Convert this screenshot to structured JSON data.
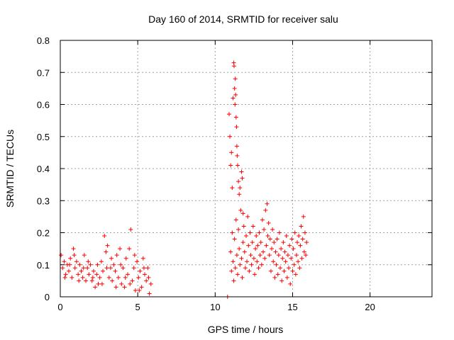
{
  "chart_data": {
    "type": "scatter",
    "title": "Day 160 of 2014, SRMTID for receiver salu",
    "xlabel": "GPS time / hours",
    "ylabel": "SRMTID / TECUs",
    "xlim": [
      0,
      24
    ],
    "ylim": [
      0,
      0.8
    ],
    "xticks": [
      0,
      5,
      10,
      15,
      20
    ],
    "yticks": [
      0,
      0.1,
      0.2,
      0.3,
      0.4,
      0.5,
      0.6,
      0.7,
      0.8
    ],
    "xtick_labels": [
      "0",
      "5",
      "10",
      "15",
      "20"
    ],
    "ytick_labels": [
      "0",
      "0.1",
      "0.2",
      "0.3",
      "0.4",
      "0.5",
      "0.6",
      "0.7",
      "0.8"
    ],
    "grid": true,
    "marker": "+",
    "color": "#ff0000",
    "series": [
      {
        "name": "SRMTID",
        "points": [
          [
            0.05,
            0.13
          ],
          [
            0.15,
            0.09
          ],
          [
            0.25,
            0.11
          ],
          [
            0.35,
            0.07
          ],
          [
            0.45,
            0.1
          ],
          [
            0.55,
            0.08
          ],
          [
            0.65,
            0.12
          ],
          [
            0.75,
            0.06
          ],
          [
            0.85,
            0.15
          ],
          [
            0.95,
            0.09
          ],
          [
            1.05,
            0.11
          ],
          [
            1.15,
            0.07
          ],
          [
            1.25,
            0.1
          ],
          [
            1.35,
            0.08
          ],
          [
            1.45,
            0.06
          ],
          [
            1.55,
            0.13
          ],
          [
            1.65,
            0.05
          ],
          [
            1.75,
            0.09
          ],
          [
            1.85,
            0.07
          ],
          [
            1.95,
            0.1
          ],
          [
            2.05,
            0.05
          ],
          [
            2.15,
            0.08
          ],
          [
            2.25,
            0.03
          ],
          [
            2.35,
            0.07
          ],
          [
            2.45,
            0.04
          ],
          [
            2.55,
            0.06
          ],
          [
            2.65,
            0.11
          ],
          [
            2.75,
            0.08
          ],
          [
            2.85,
            0.19
          ],
          [
            2.95,
            0.14
          ],
          [
            3.05,
            0.16
          ],
          [
            3.15,
            0.06
          ],
          [
            3.25,
            0.09
          ],
          [
            3.35,
            0.05
          ],
          [
            3.45,
            0.1
          ],
          [
            3.55,
            0.08
          ],
          [
            3.65,
            0.13
          ],
          [
            3.75,
            0.06
          ],
          [
            3.85,
            0.15
          ],
          [
            3.95,
            0.04
          ],
          [
            4.05,
            0.09
          ],
          [
            4.15,
            0.03
          ],
          [
            4.25,
            0.12
          ],
          [
            4.35,
            0.07
          ],
          [
            4.45,
            0.15
          ],
          [
            4.55,
            0.21
          ],
          [
            4.65,
            0.05
          ],
          [
            4.75,
            0.09
          ],
          [
            4.85,
            0.02
          ],
          [
            4.95,
            0.11
          ],
          [
            5.05,
            0.06
          ],
          [
            5.15,
            0.08
          ],
          [
            5.25,
            0.03
          ],
          [
            5.35,
            0.12
          ],
          [
            5.45,
            0.07
          ],
          [
            5.55,
            0.05
          ],
          [
            5.65,
            0.09
          ],
          [
            5.75,
            0.01
          ],
          [
            5.85,
            0.04
          ],
          [
            0.3,
            0.06
          ],
          [
            0.6,
            0.1
          ],
          [
            0.9,
            0.13
          ],
          [
            1.2,
            0.05
          ],
          [
            1.5,
            0.09
          ],
          [
            1.8,
            0.11
          ],
          [
            2.1,
            0.06
          ],
          [
            2.4,
            0.1
          ],
          [
            2.7,
            0.04
          ],
          [
            3.0,
            0.09
          ],
          [
            3.3,
            0.12
          ],
          [
            3.6,
            0.03
          ],
          [
            3.9,
            0.1
          ],
          [
            4.2,
            0.06
          ],
          [
            4.5,
            0.04
          ],
          [
            4.8,
            0.13
          ],
          [
            5.1,
            0.02
          ],
          [
            5.4,
            0.09
          ],
          [
            5.7,
            0.06
          ],
          [
            10.8,
            0.0
          ],
          [
            10.9,
            0.57
          ],
          [
            10.95,
            0.5
          ],
          [
            11.0,
            0.41
          ],
          [
            11.05,
            0.45
          ],
          [
            11.1,
            0.34
          ],
          [
            11.15,
            0.62
          ],
          [
            11.2,
            0.73
          ],
          [
            11.22,
            0.72
          ],
          [
            11.25,
            0.65
          ],
          [
            11.28,
            0.6
          ],
          [
            11.3,
            0.68
          ],
          [
            11.32,
            0.63
          ],
          [
            11.35,
            0.56
          ],
          [
            11.38,
            0.53
          ],
          [
            11.4,
            0.47
          ],
          [
            11.42,
            0.44
          ],
          [
            11.45,
            0.41
          ],
          [
            11.5,
            0.36
          ],
          [
            11.55,
            0.32
          ],
          [
            11.6,
            0.34
          ],
          [
            11.7,
            0.39
          ],
          [
            11.75,
            0.37
          ],
          [
            11.8,
            0.26
          ],
          [
            11.0,
            0.14
          ],
          [
            11.05,
            0.08
          ],
          [
            11.1,
            0.2
          ],
          [
            11.15,
            0.11
          ],
          [
            11.2,
            0.05
          ],
          [
            11.25,
            0.18
          ],
          [
            11.3,
            0.09
          ],
          [
            11.35,
            0.24
          ],
          [
            11.4,
            0.13
          ],
          [
            11.45,
            0.07
          ],
          [
            11.5,
            0.21
          ],
          [
            11.55,
            0.15
          ],
          [
            11.6,
            0.1
          ],
          [
            11.65,
            0.27
          ],
          [
            11.7,
            0.12
          ],
          [
            11.75,
            0.06
          ],
          [
            11.8,
            0.17
          ],
          [
            11.85,
            0.22
          ],
          [
            11.9,
            0.14
          ],
          [
            11.95,
            0.09
          ],
          [
            12.0,
            0.19
          ],
          [
            12.05,
            0.11
          ],
          [
            12.1,
            0.25
          ],
          [
            12.15,
            0.16
          ],
          [
            12.2,
            0.08
          ],
          [
            12.25,
            0.2
          ],
          [
            12.3,
            0.13
          ],
          [
            12.35,
            0.1
          ],
          [
            12.4,
            0.17
          ],
          [
            12.45,
            0.22
          ],
          [
            12.5,
            0.12
          ],
          [
            12.55,
            0.07
          ],
          [
            12.6,
            0.15
          ],
          [
            12.65,
            0.19
          ],
          [
            12.7,
            0.11
          ],
          [
            12.75,
            0.16
          ],
          [
            12.8,
            0.09
          ],
          [
            12.85,
            0.2
          ],
          [
            12.9,
            0.13
          ],
          [
            12.95,
            0.17
          ],
          [
            13.0,
            0.1
          ],
          [
            13.05,
            0.24
          ],
          [
            13.1,
            0.14
          ],
          [
            13.15,
            0.21
          ],
          [
            13.2,
            0.12
          ],
          [
            13.25,
            0.27
          ],
          [
            13.3,
            0.16
          ],
          [
            13.35,
            0.29
          ],
          [
            13.4,
            0.19
          ],
          [
            13.45,
            0.23
          ],
          [
            13.5,
            0.13
          ],
          [
            13.55,
            0.18
          ],
          [
            13.6,
            0.08
          ],
          [
            13.65,
            0.15
          ],
          [
            13.7,
            0.21
          ],
          [
            13.75,
            0.11
          ],
          [
            13.8,
            0.17
          ],
          [
            13.85,
            0.06
          ],
          [
            13.9,
            0.14
          ],
          [
            13.95,
            0.1
          ],
          [
            14.0,
            0.18
          ],
          [
            14.05,
            0.07
          ],
          [
            14.1,
            0.13
          ],
          [
            14.15,
            0.2
          ],
          [
            14.2,
            0.09
          ],
          [
            14.25,
            0.15
          ],
          [
            14.3,
            0.05
          ],
          [
            14.35,
            0.12
          ],
          [
            14.4,
            0.17
          ],
          [
            14.45,
            0.08
          ],
          [
            14.5,
            0.14
          ],
          [
            14.55,
            0.11
          ],
          [
            14.6,
            0.19
          ],
          [
            14.65,
            0.06
          ],
          [
            14.7,
            0.13
          ],
          [
            14.75,
            0.09
          ],
          [
            14.8,
            0.16
          ],
          [
            14.85,
            0.04
          ],
          [
            14.9,
            0.12
          ],
          [
            14.95,
            0.18
          ],
          [
            15.0,
            0.08
          ],
          [
            15.05,
            0.15
          ],
          [
            15.1,
            0.1
          ],
          [
            15.15,
            0.2
          ],
          [
            15.2,
            0.07
          ],
          [
            15.25,
            0.13
          ],
          [
            15.3,
            0.17
          ],
          [
            15.35,
            0.11
          ],
          [
            15.4,
            0.19
          ],
          [
            15.45,
            0.09
          ],
          [
            15.5,
            0.16
          ],
          [
            15.55,
            0.22
          ],
          [
            15.6,
            0.12
          ],
          [
            15.65,
            0.18
          ],
          [
            15.7,
            0.25
          ],
          [
            15.75,
            0.14
          ],
          [
            15.8,
            0.2
          ],
          [
            15.85,
            0.13
          ],
          [
            15.9,
            0.17
          ]
        ]
      }
    ]
  }
}
